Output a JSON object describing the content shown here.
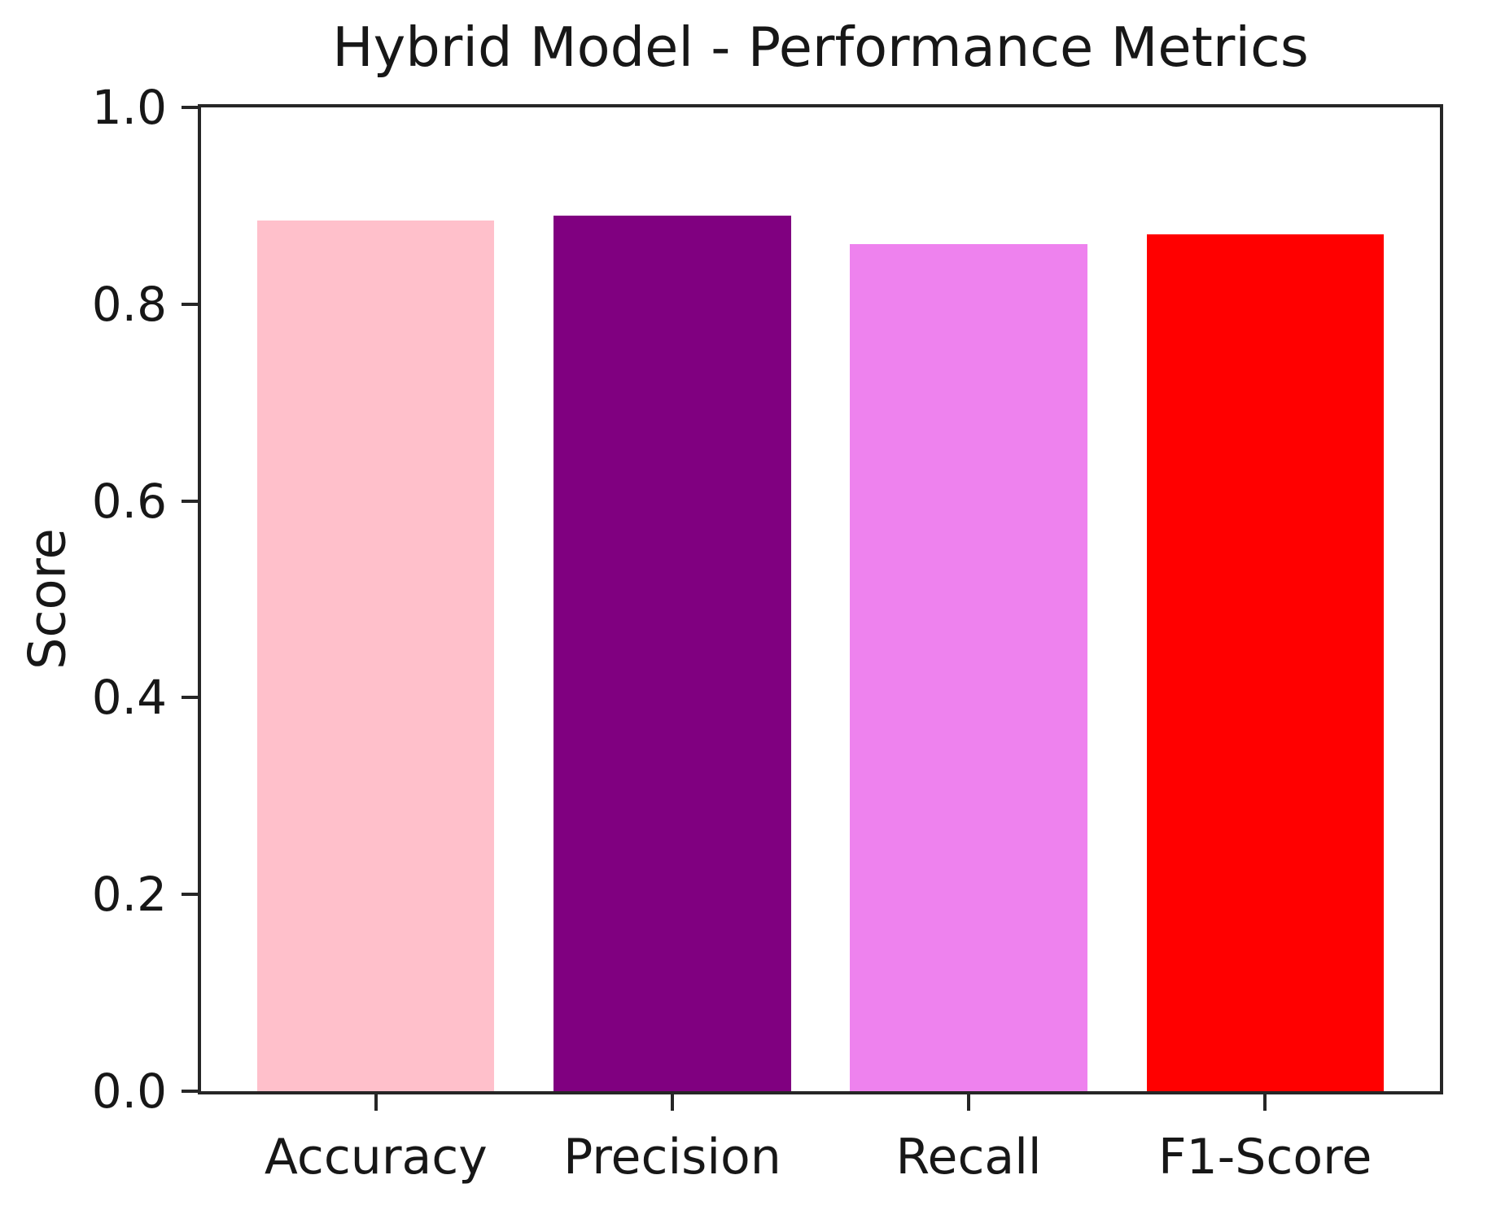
{
  "chart_data": {
    "type": "bar",
    "title": "Hybrid Model - Performance Metrics",
    "xlabel": "",
    "ylabel": "Score",
    "categories": [
      "Accuracy",
      "Precision",
      "Recall",
      "F1-Score"
    ],
    "values": [
      0.885,
      0.89,
      0.861,
      0.871
    ],
    "bar_colors": [
      "#FFC0CB",
      "#800080",
      "#EE82EE",
      "#FF0000"
    ],
    "bar_color_names": [
      "pink",
      "purple",
      "violet",
      "red"
    ],
    "ylim": [
      0.0,
      1.0
    ],
    "ytick_values": [
      0.0,
      0.2,
      0.4,
      0.6,
      0.8,
      1.0
    ],
    "ytick_labels": [
      "0.0",
      "0.2",
      "0.4",
      "0.6",
      "0.8",
      "1.0"
    ],
    "grid": false,
    "legend_position": "none",
    "axis_color": "#262626",
    "text_color": "#171717",
    "background_color": "#FFFFFF"
  }
}
